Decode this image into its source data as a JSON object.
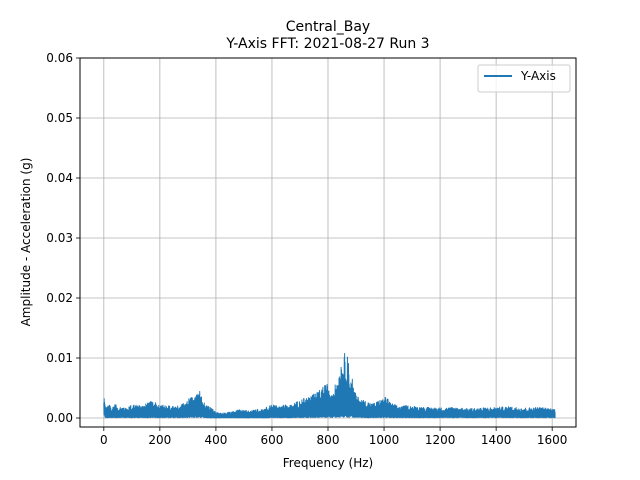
{
  "chart_data": {
    "type": "line",
    "title": "Central_Bay",
    "subtitle": "Y-Axis FFT: 2021-08-27 Run 3",
    "xlabel": "Frequency (Hz)",
    "ylabel": "Amplitude - Acceleration (g)",
    "xlim": [
      -85,
      1685
    ],
    "ylim": [
      -0.0015,
      0.06
    ],
    "xticks": [
      0,
      200,
      400,
      600,
      800,
      1000,
      1200,
      1400,
      1600
    ],
    "xtick_labels": [
      "0",
      "200",
      "400",
      "600",
      "800",
      "1000",
      "1200",
      "1400",
      "1600"
    ],
    "yticks": [
      0.0,
      0.01,
      0.02,
      0.03,
      0.04,
      0.05,
      0.06
    ],
    "ytick_labels": [
      "0.00",
      "0.01",
      "0.02",
      "0.03",
      "0.04",
      "0.05",
      "0.06"
    ],
    "grid": true,
    "legend_position": "top-right",
    "series": [
      {
        "name": "Y-Axis",
        "color": "#1f77b4",
        "x": [
          0,
          5,
          10,
          20,
          30,
          40,
          50,
          60,
          80,
          100,
          120,
          140,
          160,
          180,
          200,
          220,
          240,
          260,
          280,
          300,
          310,
          320,
          330,
          340,
          350,
          360,
          380,
          400,
          420,
          440,
          460,
          480,
          500,
          520,
          540,
          560,
          580,
          600,
          620,
          640,
          660,
          680,
          700,
          720,
          740,
          760,
          780,
          790,
          800,
          810,
          820,
          830,
          840,
          850,
          855,
          860,
          865,
          870,
          875,
          880,
          885,
          890,
          900,
          920,
          940,
          960,
          980,
          1000,
          1010,
          1020,
          1040,
          1060,
          1080,
          1100,
          1150,
          1200,
          1250,
          1300,
          1350,
          1400,
          1450,
          1500,
          1550,
          1600,
          1610
        ],
        "upper": [
          0.0043,
          0.0025,
          0.0018,
          0.0022,
          0.0017,
          0.0026,
          0.0016,
          0.0018,
          0.0017,
          0.0022,
          0.0021,
          0.002,
          0.0028,
          0.0026,
          0.0024,
          0.0022,
          0.0019,
          0.002,
          0.0023,
          0.0034,
          0.0038,
          0.003,
          0.004,
          0.0047,
          0.0038,
          0.0025,
          0.0018,
          0.001,
          0.0008,
          0.0009,
          0.0011,
          0.0014,
          0.0013,
          0.0012,
          0.0014,
          0.0016,
          0.0018,
          0.0022,
          0.002,
          0.0023,
          0.0021,
          0.0025,
          0.003,
          0.0034,
          0.0038,
          0.0042,
          0.0052,
          0.0055,
          0.0058,
          0.0045,
          0.005,
          0.006,
          0.0074,
          0.0105,
          0.0086,
          0.0112,
          0.0096,
          0.0124,
          0.0073,
          0.0068,
          0.0075,
          0.0055,
          0.0038,
          0.0031,
          0.0028,
          0.0024,
          0.0029,
          0.0033,
          0.0037,
          0.0026,
          0.0022,
          0.0019,
          0.0021,
          0.002,
          0.0018,
          0.0017,
          0.0018,
          0.0016,
          0.0017,
          0.0018,
          0.0019,
          0.0017,
          0.0018,
          0.0016,
          0.0015
        ],
        "lower": [
          0.0008,
          0.0002,
          0.0002,
          0.0002,
          0.0002,
          0.0002,
          0.0002,
          0.0002,
          0.0002,
          0.0002,
          0.0002,
          0.0002,
          0.0002,
          0.0002,
          0.0002,
          0.0002,
          0.0002,
          0.0002,
          0.0002,
          0.0003,
          0.0003,
          0.0003,
          0.0004,
          0.0004,
          0.0003,
          0.0002,
          0.0001,
          0.0001,
          0.0001,
          0.0001,
          0.0001,
          0.0001,
          0.0001,
          0.0001,
          0.0001,
          0.0001,
          0.0001,
          0.0002,
          0.0002,
          0.0002,
          0.0002,
          0.0002,
          0.0003,
          0.0003,
          0.0003,
          0.0004,
          0.0004,
          0.0004,
          0.0005,
          0.0004,
          0.0004,
          0.0005,
          0.0005,
          0.0007,
          0.0006,
          0.0007,
          0.0006,
          0.0007,
          0.0005,
          0.0005,
          0.0005,
          0.0004,
          0.0003,
          0.0003,
          0.0002,
          0.0002,
          0.0002,
          0.0003,
          0.0003,
          0.0002,
          0.0002,
          0.0002,
          0.0002,
          0.0002,
          0.0002,
          0.0002,
          0.0002,
          0.0002,
          0.0002,
          0.0002,
          0.0002,
          0.0002,
          0.0002,
          0.0002,
          0.0002
        ]
      }
    ]
  }
}
